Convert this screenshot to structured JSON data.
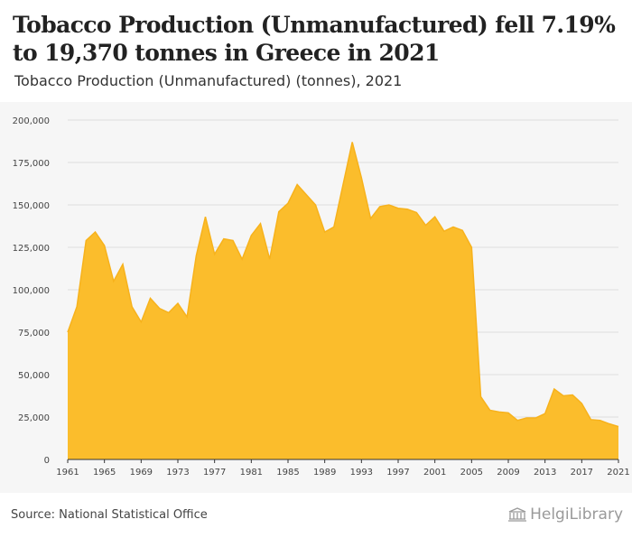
{
  "header": {
    "title": "Tobacco Production (Unmanufactured) fell 7.19% to 19,370 tonnes in Greece in 2021",
    "subtitle": "Tobacco Production (Unmanufactured) (tonnes), 2021"
  },
  "footer": {
    "source": "Source: National Statistical Office",
    "logo_text": "HelgiLibrary"
  },
  "colors": {
    "area_fill": "#fbbd2c",
    "area_stroke": "#f7b21c",
    "grid": "#dddddd",
    "axis_text": "#444444"
  },
  "chart_data": {
    "type": "area",
    "title": "",
    "xlabel": "",
    "ylabel": "",
    "x": [
      1961,
      1962,
      1963,
      1964,
      1965,
      1966,
      1967,
      1968,
      1969,
      1970,
      1971,
      1972,
      1973,
      1974,
      1975,
      1976,
      1977,
      1978,
      1979,
      1980,
      1981,
      1982,
      1983,
      1984,
      1985,
      1986,
      1987,
      1988,
      1989,
      1990,
      1991,
      1992,
      1993,
      1994,
      1995,
      1996,
      1997,
      1998,
      1999,
      2000,
      2001,
      2002,
      2003,
      2004,
      2005,
      2006,
      2007,
      2008,
      2009,
      2010,
      2011,
      2012,
      2013,
      2014,
      2015,
      2016,
      2017,
      2018,
      2019,
      2020,
      2021
    ],
    "values": [
      75000,
      90000,
      129000,
      134000,
      126000,
      105000,
      115000,
      90000,
      81000,
      95000,
      89000,
      86500,
      92000,
      84000,
      120000,
      143000,
      121000,
      130000,
      129000,
      118000,
      132000,
      139000,
      118000,
      146000,
      151000,
      162000,
      156000,
      150000,
      134000,
      137000,
      162000,
      187000,
      166000,
      142000,
      149000,
      150000,
      148000,
      147500,
      145500,
      138000,
      143000,
      134500,
      137000,
      135000,
      125000,
      37000,
      29000,
      28000,
      27500,
      23000,
      24500,
      24500,
      27000,
      41500,
      37500,
      38000,
      33000,
      23500,
      23000,
      21000,
      19370
    ],
    "xticks": [
      "1961",
      "1965",
      "1969",
      "1973",
      "1977",
      "1981",
      "1985",
      "1989",
      "1993",
      "1997",
      "2001",
      "2005",
      "2009",
      "2013",
      "2017",
      "2021"
    ],
    "yticks": [
      "0",
      "25,000",
      "50,000",
      "75,000",
      "100,000",
      "125,000",
      "150,000",
      "175,000",
      "200,000"
    ],
    "ylim": [
      0,
      200000
    ],
    "xlim": [
      1961,
      2021
    ],
    "grid": true,
    "legend": "none"
  }
}
